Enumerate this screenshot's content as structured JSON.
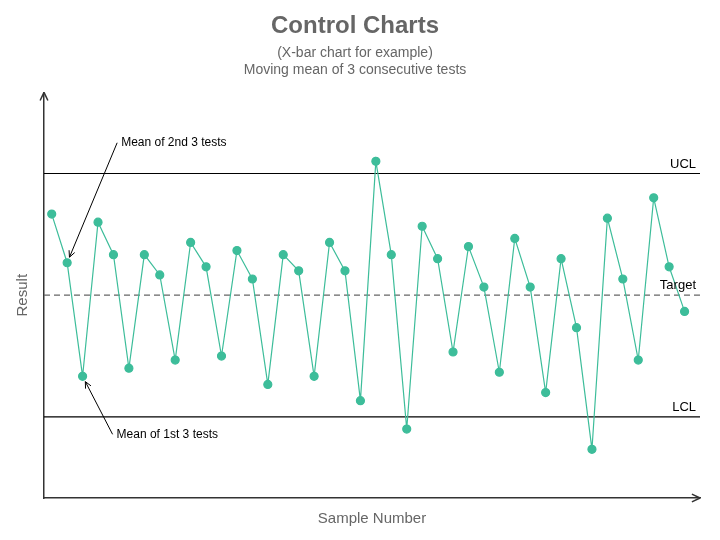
{
  "chart_data": {
    "type": "line",
    "title": "Control Charts",
    "subtitle": [
      "(X-bar chart for example)",
      "Moving mean of 3 consecutive tests"
    ],
    "x_label": "Sample Number",
    "y_label": "Result",
    "x": [
      0,
      1,
      2,
      3,
      4,
      5,
      6,
      7,
      8,
      9,
      10,
      11,
      12,
      13,
      14,
      15,
      16,
      17,
      18,
      19,
      20,
      21,
      22,
      23,
      24,
      25,
      26,
      27,
      28,
      29,
      30,
      31,
      32,
      33,
      34,
      35,
      36,
      37,
      38,
      39,
      40,
      41
    ],
    "values": [
      0.7,
      0.58,
      0.3,
      0.68,
      0.6,
      0.32,
      0.6,
      0.55,
      0.34,
      0.63,
      0.57,
      0.35,
      0.61,
      0.54,
      0.28,
      0.6,
      0.56,
      0.3,
      0.63,
      0.56,
      0.24,
      0.83,
      0.6,
      0.17,
      0.67,
      0.59,
      0.36,
      0.62,
      0.52,
      0.31,
      0.64,
      0.52,
      0.26,
      0.59,
      0.42,
      0.12,
      0.69,
      0.54,
      0.34,
      0.74,
      0.57,
      0.46
    ],
    "color": "#3dbd9a",
    "marker": "circle",
    "xlim": [
      -0.5,
      42
    ],
    "ylim": [
      0.0,
      1.0
    ],
    "tick_labels": false,
    "grid": false,
    "reference_lines": [
      {
        "y": 0.8,
        "label": "UCL",
        "color": "#000000",
        "line_style": "solid"
      },
      {
        "y": 0.5,
        "label": "Target",
        "color": "#666666",
        "line_style": "dashed"
      },
      {
        "y": 0.2,
        "label": "LCL",
        "color": "#000000",
        "line_style": "solid"
      }
    ],
    "annotations": [
      {
        "text": "Mean of 2nd 3 tests",
        "x": 1,
        "y": 0.58
      },
      {
        "text": "Mean of 1st 3 tests",
        "x": 2,
        "y": 0.3
      }
    ]
  }
}
